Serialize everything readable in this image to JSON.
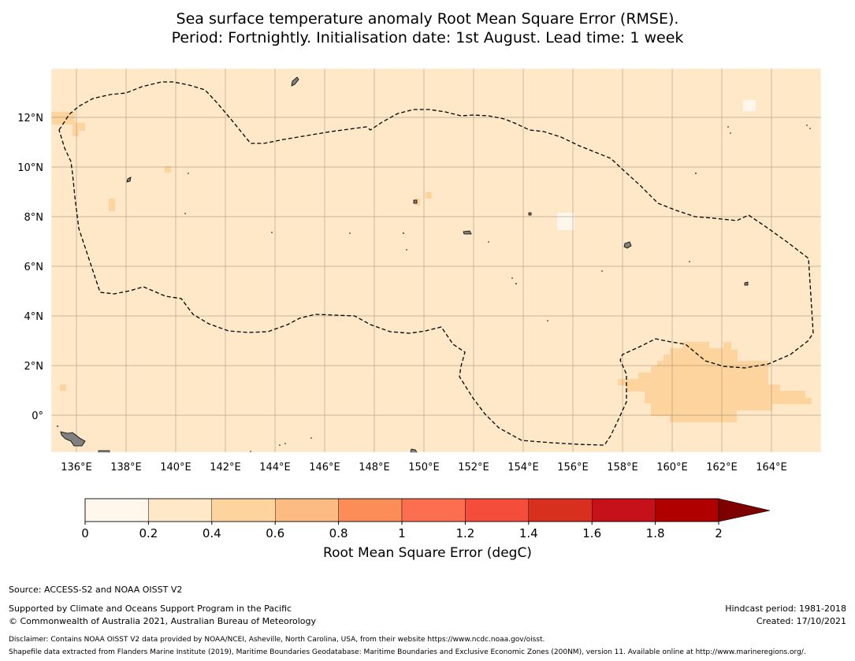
{
  "title": {
    "line1": "Sea surface temperature anomaly Root Mean Square Error (RMSE).",
    "line2": "Period: Fortnightly. Initialisation date: 1st August. Lead time: 1 week"
  },
  "map": {
    "lon_range": [
      135,
      166
    ],
    "lat_range": [
      -1.5,
      14
    ],
    "lon_ticks": [
      "136°E",
      "138°E",
      "140°E",
      "142°E",
      "144°E",
      "146°E",
      "148°E",
      "150°E",
      "152°E",
      "154°E",
      "156°E",
      "158°E",
      "160°E",
      "162°E",
      "164°E"
    ],
    "lat_ticks": [
      "12°N",
      "10°N",
      "8°N",
      "6°N",
      "4°N",
      "2°N",
      "0°"
    ],
    "background_rmse_class": "0.2-0.4",
    "colors": {
      "ocean_base": "#fee8c8",
      "patch": "#fdd49e",
      "low_patch": "#fff7ec",
      "land": "#808080",
      "grid": "#7a6a55"
    },
    "eez_boundary_style": "dashed"
  },
  "colorbar": {
    "ticks": [
      "0",
      "0.2",
      "0.4",
      "0.6",
      "0.8",
      "1",
      "1.2",
      "1.4",
      "1.6",
      "1.8",
      "2"
    ],
    "colors": [
      "#fff7ec",
      "#fee8c8",
      "#fdd49e",
      "#fdbb84",
      "#fc8d59",
      "#fc6e50",
      "#f44d3c",
      "#d7301f",
      "#c6101a",
      "#b00000",
      "#7f0000"
    ],
    "label": "Root Mean Square Error (degC)",
    "extend": "max"
  },
  "footer": {
    "source": "Source: ACCESS-S2 and NOAA OISST V2",
    "support": "Supported by Climate and Oceans Support Program in the Pacific",
    "copyright": "© Commonwealth of Australia 2021, Australian Bureau of Meteorology",
    "hindcast": "Hindcast period: 1981-2018",
    "created": "Created: 17/10/2021",
    "disclaimer": "Disclaimer: Contains NOAA OISST V2 data provided by NOAA/NCEI, Asheville, North Carolina, USA, from their website https://www.ncdc.noaa.gov/oisst.",
    "shapefile": "Shapefile data extracted from Flanders Marine Institute (2019), Maritime Boundaries Geodatabase: Maritime Boundaries and Exclusive Economic Zones (200NM), version 11. Available online at http://www.marineregions.org/."
  }
}
